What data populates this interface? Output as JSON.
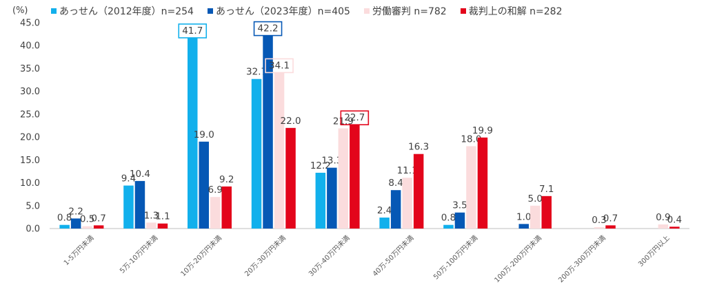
{
  "chart_data": {
    "type": "bar",
    "unit_label": "(%)",
    "categories": [
      "1-5万円未満",
      "5万-10万円未満",
      "10万-20万円未満",
      "20万-30万円未満",
      "30万-40万円未満",
      "40万-50万円未満",
      "50万-100万円未満",
      "100万-200万円未満",
      "200万-300万円未満",
      "300万円以上"
    ],
    "ylim": [
      0,
      45
    ],
    "yticks": [
      "0.0",
      "5.0",
      "10.0",
      "15.0",
      "20.0",
      "25.0",
      "30.0",
      "35.0",
      "40.0",
      "45.0"
    ],
    "grid": false,
    "legend_position": "top",
    "series": [
      {
        "name": "あっせん（2012年度）n=254",
        "color": "#12B0EC",
        "values": [
          0.8,
          9.4,
          41.7,
          32.7,
          12.2,
          2.4,
          0.8,
          null,
          null,
          null
        ],
        "labels": [
          "0.8",
          "9.4",
          "41.7",
          "32.7",
          "12.2",
          "2.4",
          "0.8",
          "",
          "",
          ""
        ]
      },
      {
        "name": "あっせん（2023年度）n=405",
        "color": "#0658B5",
        "values": [
          2.2,
          10.4,
          19.0,
          42.2,
          13.3,
          8.4,
          3.5,
          1.0,
          null,
          null
        ],
        "labels": [
          "2.2",
          "10.4",
          "19.0",
          "42.2",
          "13.3",
          "8.4",
          "3.5",
          "1.0",
          "",
          ""
        ]
      },
      {
        "name": "労働審判 n=782",
        "color": "#FBDCDD",
        "values": [
          0.5,
          1.3,
          6.9,
          34.1,
          21.9,
          11.1,
          18.0,
          5.0,
          0.3,
          0.9
        ],
        "labels": [
          "0.5",
          "1.3",
          "6.9",
          "34.1",
          "21.9",
          "11.1",
          "18.0",
          "5.0",
          "0.3",
          "0.9"
        ]
      },
      {
        "name": "裁判上の和解 n=282",
        "color": "#E3051B",
        "values": [
          0.7,
          1.1,
          9.2,
          22.0,
          22.7,
          16.3,
          19.9,
          7.1,
          0.7,
          0.4
        ],
        "labels": [
          "0.7",
          "1.1",
          "9.2",
          "22.0",
          "22.7",
          "16.3",
          "19.9",
          "7.1",
          "0.7",
          "0.4"
        ]
      }
    ],
    "highlighted": [
      {
        "series": 0,
        "category": 2,
        "color": "#12B0EC"
      },
      {
        "series": 1,
        "category": 3,
        "color": "#0658B5"
      },
      {
        "series": 2,
        "category": 3,
        "color": "#FBDCDD"
      },
      {
        "series": 3,
        "category": 4,
        "color": "#E3051B"
      }
    ]
  }
}
